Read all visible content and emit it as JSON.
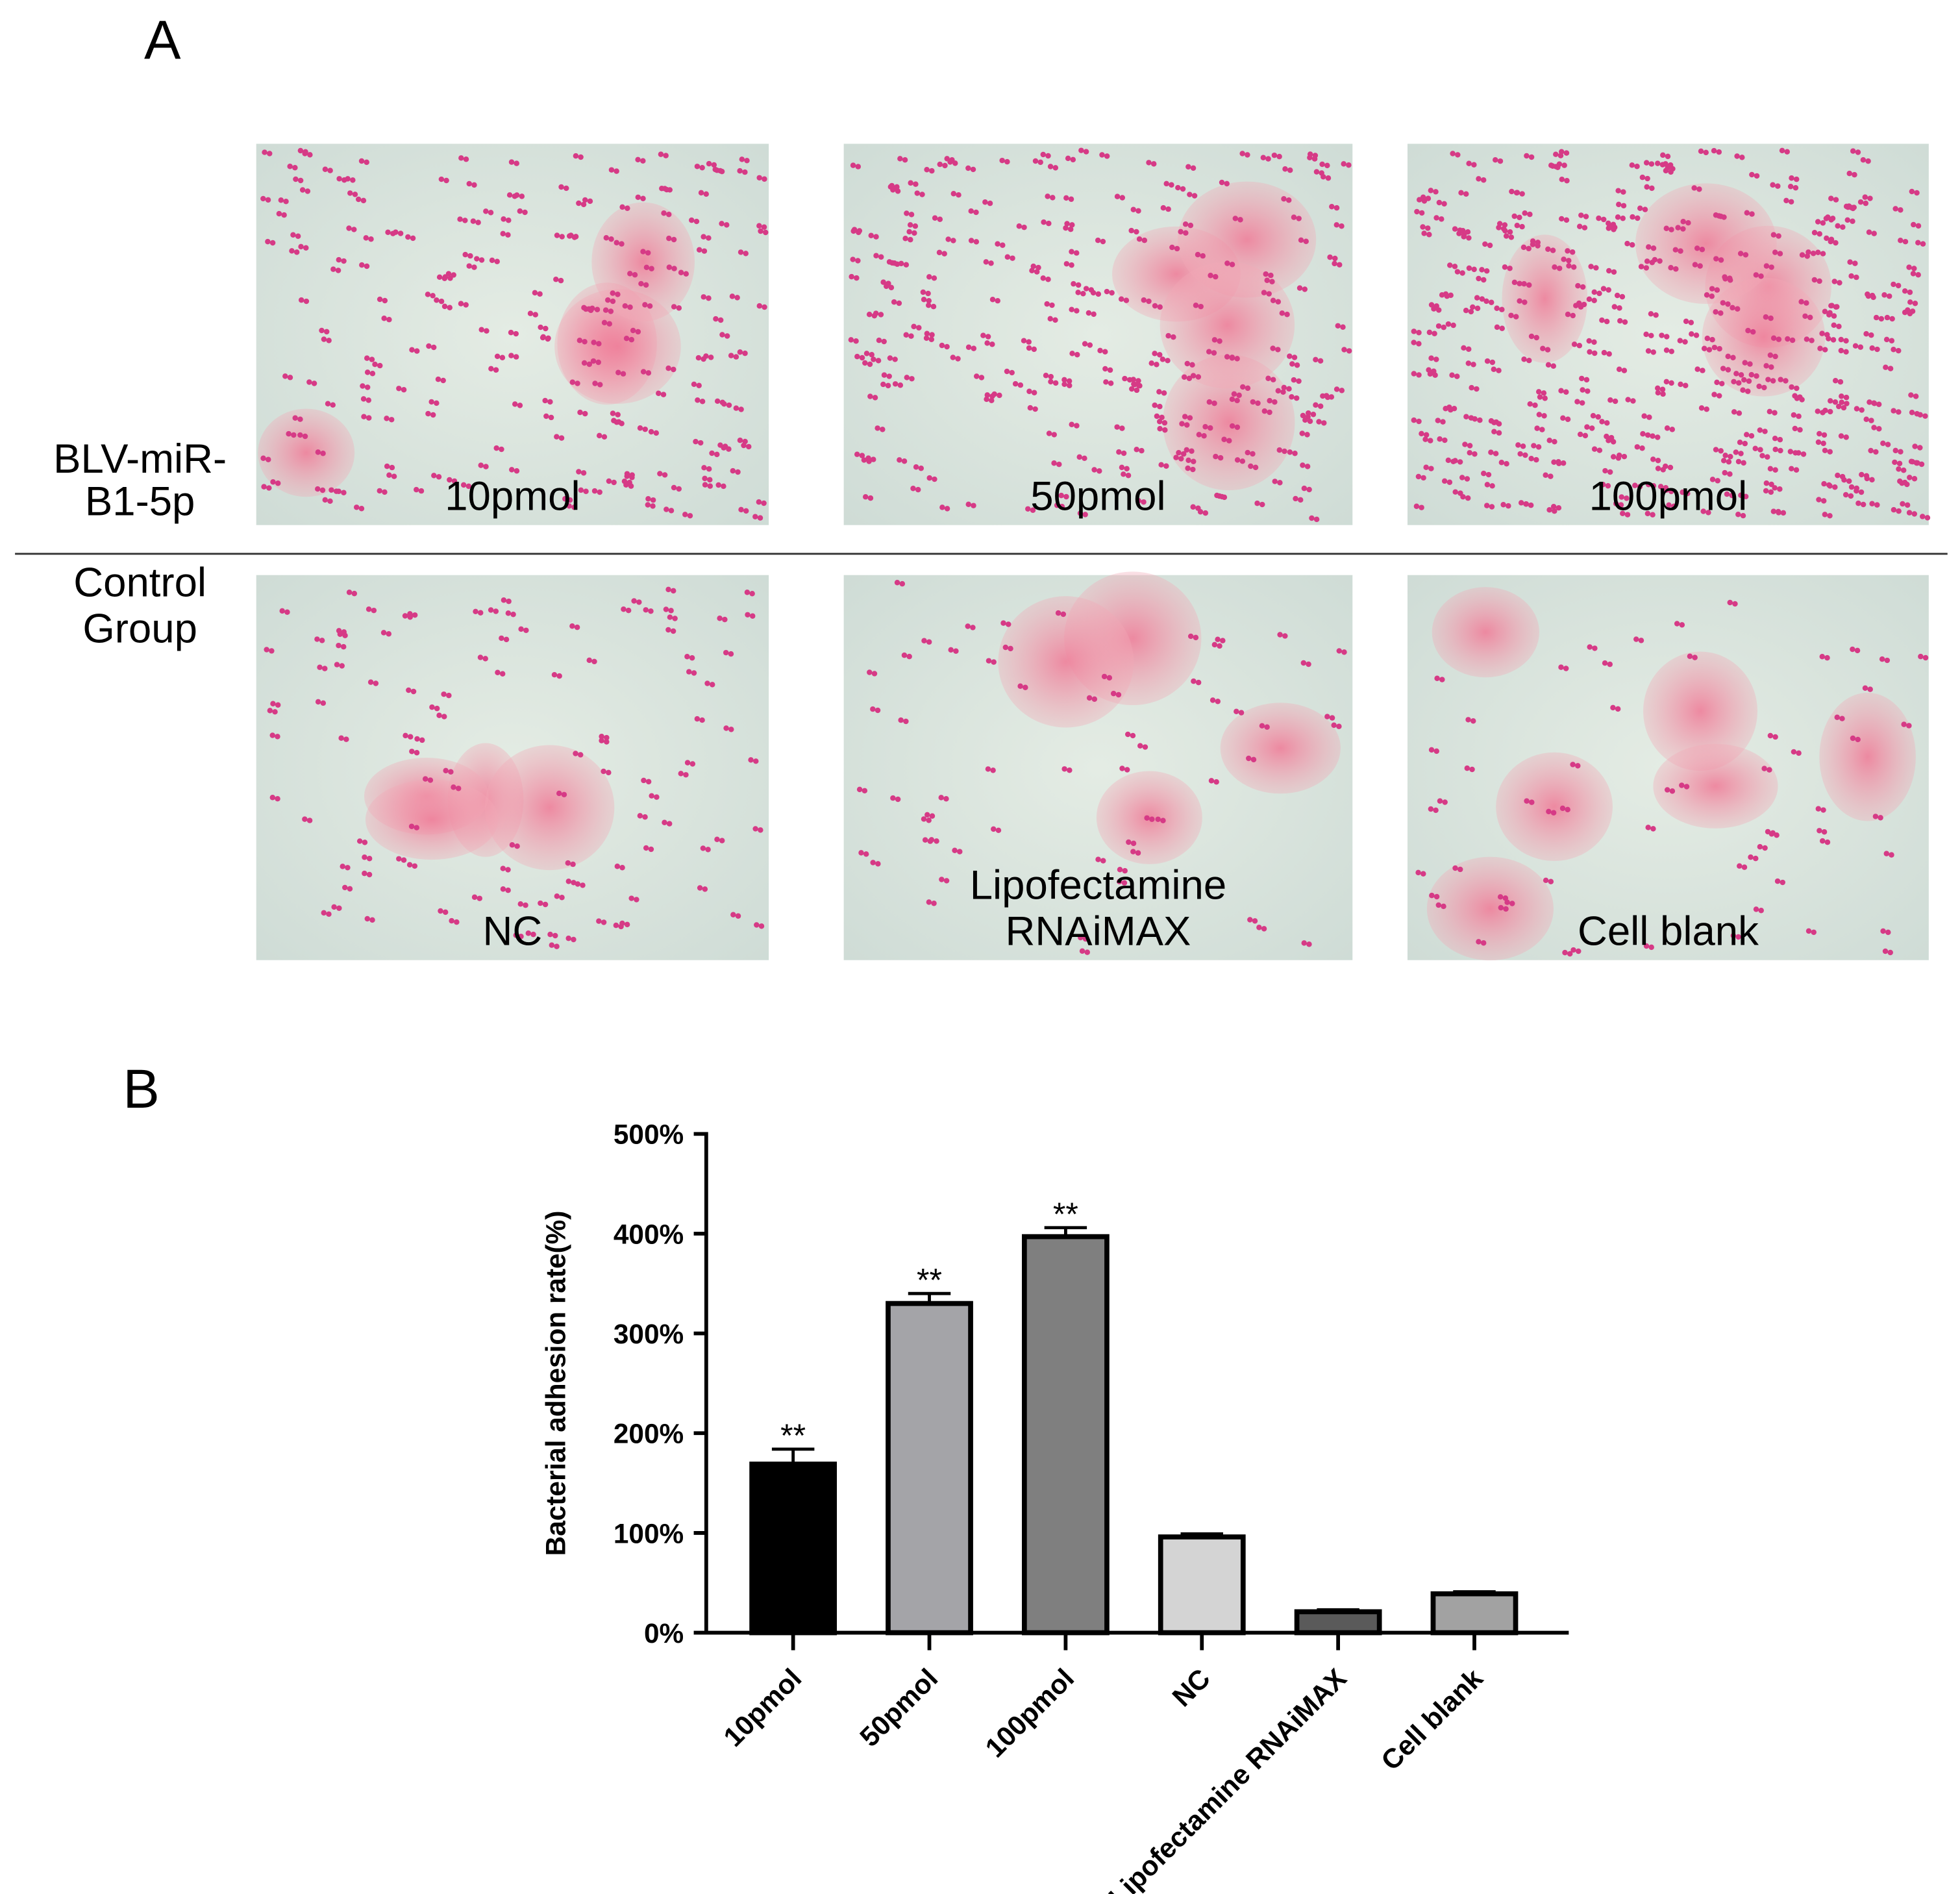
{
  "panel_a": {
    "label": "A",
    "rows": [
      {
        "label": [
          "BLV-miR-",
          "B1-5p"
        ],
        "images": [
          [
            "10pmol"
          ],
          [
            "50pmol"
          ],
          [
            "100pmol"
          ]
        ]
      },
      {
        "label": [
          "Control",
          "Group"
        ],
        "images": [
          [
            "NC"
          ],
          [
            "Lipofectamine",
            "RNAiMAX"
          ],
          [
            "Cell blank"
          ]
        ]
      }
    ]
  },
  "panel_b": {
    "label": "B"
  },
  "chart_data": {
    "type": "bar",
    "y_label": "Bacterial adhesion rate(%)",
    "categories": [
      "10pmol",
      "50pmol",
      "100pmol",
      "NC",
      "Lipofectamine RNAiMAX",
      "Cell blank"
    ],
    "values": [
      169,
      330,
      397,
      96,
      21,
      39
    ],
    "errors": [
      15,
      10,
      9,
      3,
      2,
      2
    ],
    "significance": [
      "**",
      "**",
      "**",
      null,
      null,
      null
    ],
    "colors": [
      "#000000",
      "#a4a4a8",
      "#7f7f7f",
      "#d4d4d4",
      "#5a5a5a",
      "#a2a2a2"
    ],
    "ylim": [
      0,
      500
    ],
    "yticks": [
      {
        "value": 0,
        "label": "0%"
      },
      {
        "value": 100,
        "label": "100%"
      },
      {
        "value": 200,
        "label": "200%"
      },
      {
        "value": 300,
        "label": "300%"
      },
      {
        "value": 400,
        "label": "400%"
      },
      {
        "value": 500,
        "label": "500%"
      }
    ]
  }
}
